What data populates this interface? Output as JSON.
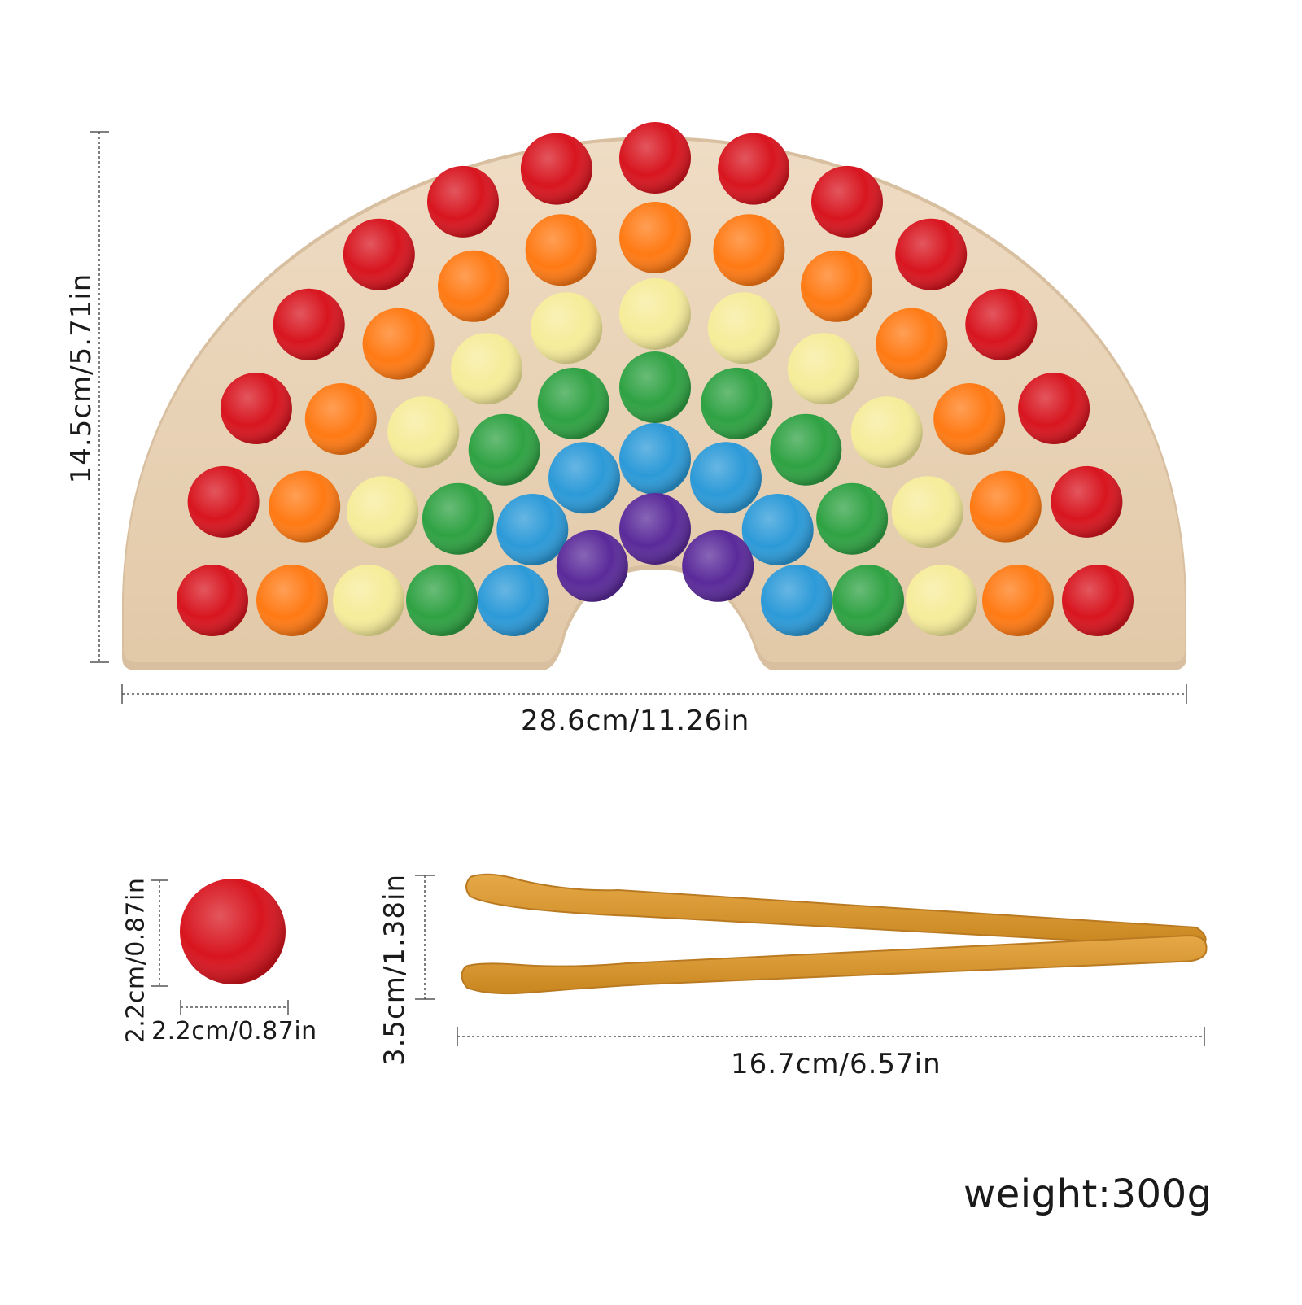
{
  "dimensions": {
    "board_width": "28.6cm/11.26in",
    "board_height": "14.5cm/5.71in",
    "ball_width": "2.2cm/0.87in",
    "ball_height": "2.2cm/0.87in",
    "tweezers_length": "16.7cm/6.57in",
    "tweezers_height": "3.5cm/1.38in"
  },
  "weight": "weight:300g",
  "colors": {
    "wood": "#e8d5bd",
    "wood_edge": "#d8bf9f",
    "bamboo": "#d99a3a",
    "bamboo_dark": "#b97a22",
    "pompom": [
      "#d8151f",
      "#ff7a14",
      "#f6ec9a",
      "#2fa243",
      "#2c9ad8",
      "#5a2a9a"
    ]
  }
}
